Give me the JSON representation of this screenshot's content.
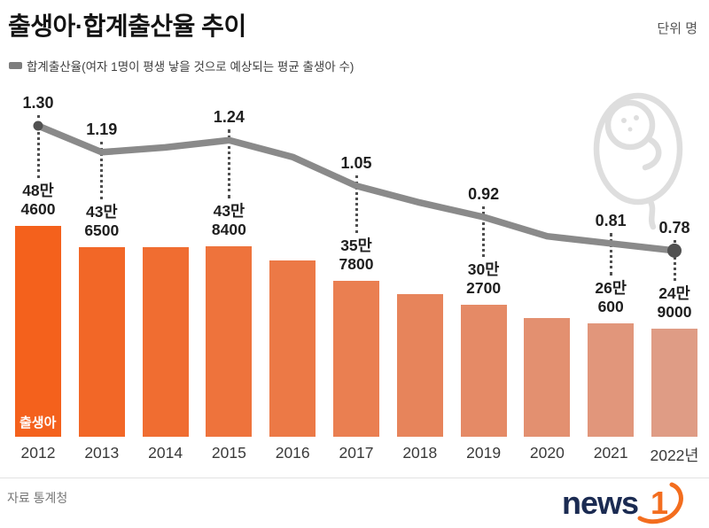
{
  "page": {
    "title": "출생아·합계출산율 추이",
    "unit_label": "단위 명",
    "legend": "합계출산율(여자 1명이 평생 낳을 것으로 예상되는 평균 출생아 수)",
    "bar_series_label": "출생아",
    "source": "자료 통계청",
    "logo": {
      "text": "news",
      "accent": "1"
    }
  },
  "colors": {
    "bar_gradient_start": "#f4611c",
    "bar_gradient_end": "#df9c85",
    "line": "#8a8a8a",
    "marker": "#515151",
    "dotted": "#4f4f4f",
    "accent_orange": "#f36d1e",
    "logo_navy": "#1b2b52",
    "baby_icon_gray": "#dedede"
  },
  "chart_data": {
    "type": "bar+line",
    "title": "출생아·합계출산율 추이",
    "categories": [
      "2012",
      "2013",
      "2014",
      "2015",
      "2016",
      "2017",
      "2018",
      "2019",
      "2020",
      "2021",
      "2022년"
    ],
    "series": [
      {
        "name": "출생아",
        "type": "bar",
        "unit": "명",
        "values": [
          484600,
          436500,
          435400,
          438400,
          406200,
          357800,
          326800,
          302700,
          272300,
          260600,
          249000
        ],
        "labels": [
          "48만\n4600",
          "43만\n6500",
          null,
          "43만\n8400",
          null,
          "35만\n7800",
          null,
          "30만\n2700",
          null,
          "26만\n600",
          "24만\n9000"
        ]
      },
      {
        "name": "합계출산율",
        "type": "line",
        "values": [
          1.3,
          1.19,
          1.21,
          1.24,
          1.17,
          1.05,
          0.98,
          0.92,
          0.84,
          0.81,
          0.78
        ],
        "labels": [
          "1.30",
          "1.19",
          null,
          "1.24",
          null,
          "1.05",
          null,
          "0.92",
          null,
          "0.81",
          "0.78"
        ]
      }
    ],
    "grid": false,
    "axes_shown": false,
    "value_labels_shown": true,
    "legend_position": "top-left"
  }
}
